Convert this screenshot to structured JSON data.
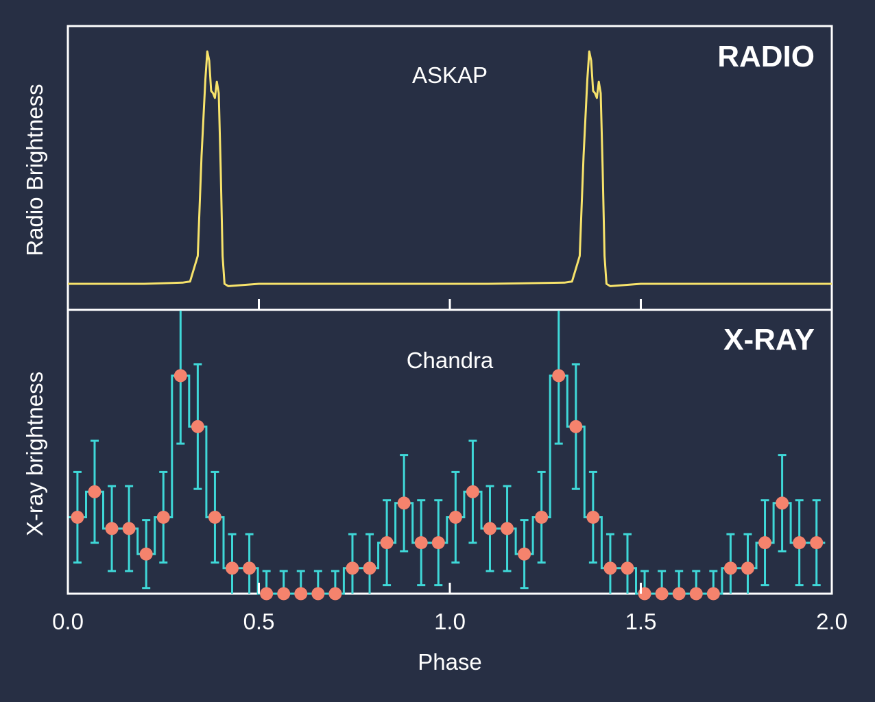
{
  "chart_data": [
    {
      "type": "line",
      "panel": "top",
      "panel_label": "RADIO",
      "annotation": "ASKAP",
      "ylabel": "Radio Brightness",
      "xlabel": "Phase",
      "xlim": [
        0.0,
        2.0
      ],
      "ylim": [
        0.0,
        1.0
      ],
      "color": "#f7e36b",
      "series": [
        {
          "x": [
            0.0,
            0.1,
            0.2,
            0.3,
            0.32,
            0.34,
            0.35,
            0.36,
            0.365,
            0.37,
            0.375,
            0.38,
            0.385,
            0.39,
            0.395,
            0.4,
            0.405,
            0.41,
            0.42,
            0.5,
            0.7,
            0.9,
            1.1,
            1.3,
            1.32,
            1.34,
            1.35,
            1.36,
            1.365,
            1.37,
            1.375,
            1.38,
            1.385,
            1.39,
            1.395,
            1.4,
            1.405,
            1.41,
            1.42,
            1.5,
            1.7,
            2.0
          ],
          "y": [
            0.0,
            0.0,
            0.0,
            0.005,
            0.01,
            0.12,
            0.55,
            0.88,
            1.0,
            0.96,
            0.83,
            0.82,
            0.8,
            0.87,
            0.82,
            0.5,
            0.12,
            0.0,
            -0.01,
            0.0,
            0.0,
            0.0,
            0.0,
            0.005,
            0.01,
            0.12,
            0.55,
            0.88,
            1.0,
            0.96,
            0.83,
            0.82,
            0.8,
            0.87,
            0.82,
            0.5,
            0.12,
            0.0,
            -0.01,
            0.0,
            0.0,
            0.0
          ]
        }
      ]
    },
    {
      "type": "scatter",
      "panel": "bottom",
      "panel_label": "X-RAY",
      "annotation": "Chandra",
      "ylabel": "X-ray brightness",
      "xlabel": "Phase",
      "xlim": [
        0.0,
        2.0
      ],
      "ylim": [
        0.0,
        1.0
      ],
      "xticks": [
        0.0,
        0.5,
        1.0,
        1.5,
        2.0
      ],
      "xtick_labels": [
        "0.0",
        "0.5",
        "1.0",
        "1.5",
        "2.0"
      ],
      "colors": {
        "points": "#f5836d",
        "errorbars": "#3fd8d8"
      },
      "series": [
        {
          "x": [
            0.025,
            0.07,
            0.115,
            0.16,
            0.205,
            0.25,
            0.295,
            0.34,
            0.385,
            0.43,
            0.475,
            0.52,
            0.565,
            0.61,
            0.655,
            0.7,
            0.745,
            0.79,
            0.835,
            0.88,
            0.925,
            0.97,
            1.015,
            1.06,
            1.105,
            1.15,
            1.195,
            1.24,
            1.285,
            1.33,
            1.375,
            1.42,
            1.465,
            1.51,
            1.555,
            1.6,
            1.645,
            1.69,
            1.735,
            1.78,
            1.825,
            1.87,
            1.915,
            1.96
          ],
          "y": [
            0.27,
            0.36,
            0.23,
            0.23,
            0.14,
            0.27,
            0.77,
            0.59,
            0.27,
            0.09,
            0.09,
            0.0,
            0.0,
            0.0,
            0.0,
            0.0,
            0.09,
            0.09,
            0.18,
            0.32,
            0.18,
            0.18,
            0.27,
            0.36,
            0.23,
            0.23,
            0.14,
            0.27,
            0.77,
            0.59,
            0.27,
            0.09,
            0.09,
            0.0,
            0.0,
            0.0,
            0.0,
            0.0,
            0.09,
            0.09,
            0.18,
            0.32,
            0.18,
            0.18
          ],
          "yerr": [
            0.16,
            0.18,
            0.15,
            0.15,
            0.12,
            0.16,
            0.24,
            0.22,
            0.16,
            0.12,
            0.12,
            0.08,
            0.08,
            0.08,
            0.08,
            0.08,
            0.12,
            0.12,
            0.15,
            0.17,
            0.15,
            0.15,
            0.16,
            0.18,
            0.15,
            0.15,
            0.12,
            0.16,
            0.24,
            0.22,
            0.16,
            0.12,
            0.12,
            0.08,
            0.08,
            0.08,
            0.08,
            0.08,
            0.12,
            0.12,
            0.15,
            0.17,
            0.15,
            0.15
          ]
        }
      ]
    }
  ]
}
